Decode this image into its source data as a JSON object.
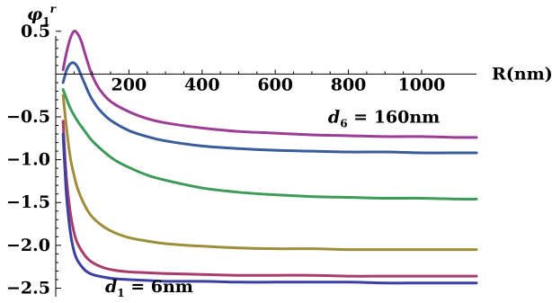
{
  "chart_data": {
    "type": "line",
    "title": "",
    "xlabel": "R(nm)",
    "ylabel_main": "φ",
    "ylabel_sub": "1",
    "ylabel_sup": "r",
    "xlim": [
      0,
      1150
    ],
    "ylim": [
      -2.6,
      0.55
    ],
    "x_ticks": [
      {
        "value": 200,
        "label": "200"
      },
      {
        "value": 400,
        "label": "400"
      },
      {
        "value": 600,
        "label": "600"
      },
      {
        "value": 800,
        "label": "800"
      },
      {
        "value": 1000,
        "label": "1000"
      }
    ],
    "y_ticks": [
      {
        "value": 0.5,
        "label": "0.5"
      },
      {
        "value": -0.5,
        "label": "−0.5"
      },
      {
        "value": -1.0,
        "label": "−1.0"
      },
      {
        "value": -1.5,
        "label": "−1.5"
      },
      {
        "value": -2.0,
        "label": "−2.0"
      },
      {
        "value": -2.5,
        "label": "−2.5"
      }
    ],
    "grid": false,
    "legend": "none",
    "annotations": [
      {
        "var": "d",
        "sub": "6",
        "text": " = 160nm",
        "x": 1050,
        "y": -0.57
      },
      {
        "var": "d",
        "sub": "1",
        "text": " = 6nm",
        "x": 135,
        "y": -2.55
      }
    ],
    "series": [
      {
        "color": "#9b3d94",
        "x": [
          20,
          30,
          40,
          50,
          60,
          70,
          80,
          90,
          100,
          120,
          150,
          200,
          250,
          300,
          400,
          500,
          600,
          700,
          800,
          900,
          1000,
          1100,
          1150
        ],
        "y": [
          0.05,
          0.26,
          0.42,
          0.5,
          0.47,
          0.38,
          0.24,
          0.1,
          -0.02,
          -0.18,
          -0.32,
          -0.44,
          -0.52,
          -0.57,
          -0.63,
          -0.67,
          -0.69,
          -0.71,
          -0.72,
          -0.73,
          -0.73,
          -0.74,
          -0.74
        ]
      },
      {
        "color": "#3a5c9b",
        "x": [
          20,
          30,
          40,
          50,
          60,
          70,
          80,
          90,
          100,
          120,
          150,
          200,
          250,
          300,
          400,
          500,
          600,
          700,
          800,
          900,
          1000,
          1100,
          1150
        ],
        "y": [
          -0.1,
          0.05,
          0.12,
          0.13,
          0.08,
          -0.02,
          -0.12,
          -0.22,
          -0.3,
          -0.42,
          -0.54,
          -0.66,
          -0.73,
          -0.78,
          -0.84,
          -0.87,
          -0.89,
          -0.9,
          -0.91,
          -0.91,
          -0.92,
          -0.92,
          -0.92
        ]
      },
      {
        "color": "#3e9a58",
        "x": [
          20,
          40,
          60,
          80,
          100,
          130,
          160,
          200,
          250,
          300,
          400,
          500,
          600,
          700,
          800,
          900,
          1000,
          1100,
          1150
        ],
        "y": [
          -0.18,
          -0.4,
          -0.55,
          -0.67,
          -0.78,
          -0.9,
          -1.0,
          -1.09,
          -1.18,
          -1.24,
          -1.33,
          -1.38,
          -1.41,
          -1.43,
          -1.44,
          -1.45,
          -1.45,
          -1.46,
          -1.46
        ]
      },
      {
        "color": "#9e8e3c",
        "x": [
          20,
          30,
          40,
          50,
          60,
          80,
          100,
          130,
          160,
          200,
          250,
          300,
          400,
          500,
          600,
          700,
          800,
          900,
          1000,
          1100,
          1150
        ],
        "y": [
          -0.25,
          -0.65,
          -0.98,
          -1.18,
          -1.34,
          -1.54,
          -1.67,
          -1.78,
          -1.85,
          -1.91,
          -1.95,
          -1.98,
          -2.01,
          -2.03,
          -2.04,
          -2.04,
          -2.05,
          -2.05,
          -2.05,
          -2.05,
          -2.05
        ]
      },
      {
        "color": "#a83c6b",
        "x": [
          20,
          25,
          30,
          40,
          50,
          60,
          80,
          100,
          130,
          160,
          200,
          250,
          300,
          400,
          500,
          600,
          700,
          800,
          900,
          1000,
          1100,
          1150
        ],
        "y": [
          -0.55,
          -0.95,
          -1.25,
          -1.62,
          -1.85,
          -1.98,
          -2.12,
          -2.2,
          -2.26,
          -2.29,
          -2.31,
          -2.32,
          -2.33,
          -2.34,
          -2.35,
          -2.35,
          -2.35,
          -2.36,
          -2.36,
          -2.36,
          -2.36,
          -2.36
        ]
      },
      {
        "color": "#3a3fa0",
        "x": [
          20,
          25,
          30,
          40,
          50,
          60,
          80,
          100,
          130,
          160,
          200,
          250,
          300,
          400,
          500,
          600,
          700,
          800,
          900,
          1000,
          1100,
          1150
        ],
        "y": [
          -0.7,
          -1.1,
          -1.45,
          -1.85,
          -2.07,
          -2.18,
          -2.29,
          -2.34,
          -2.37,
          -2.39,
          -2.4,
          -2.41,
          -2.42,
          -2.42,
          -2.43,
          -2.43,
          -2.43,
          -2.43,
          -2.44,
          -2.44,
          -2.44,
          -2.44
        ]
      }
    ]
  }
}
